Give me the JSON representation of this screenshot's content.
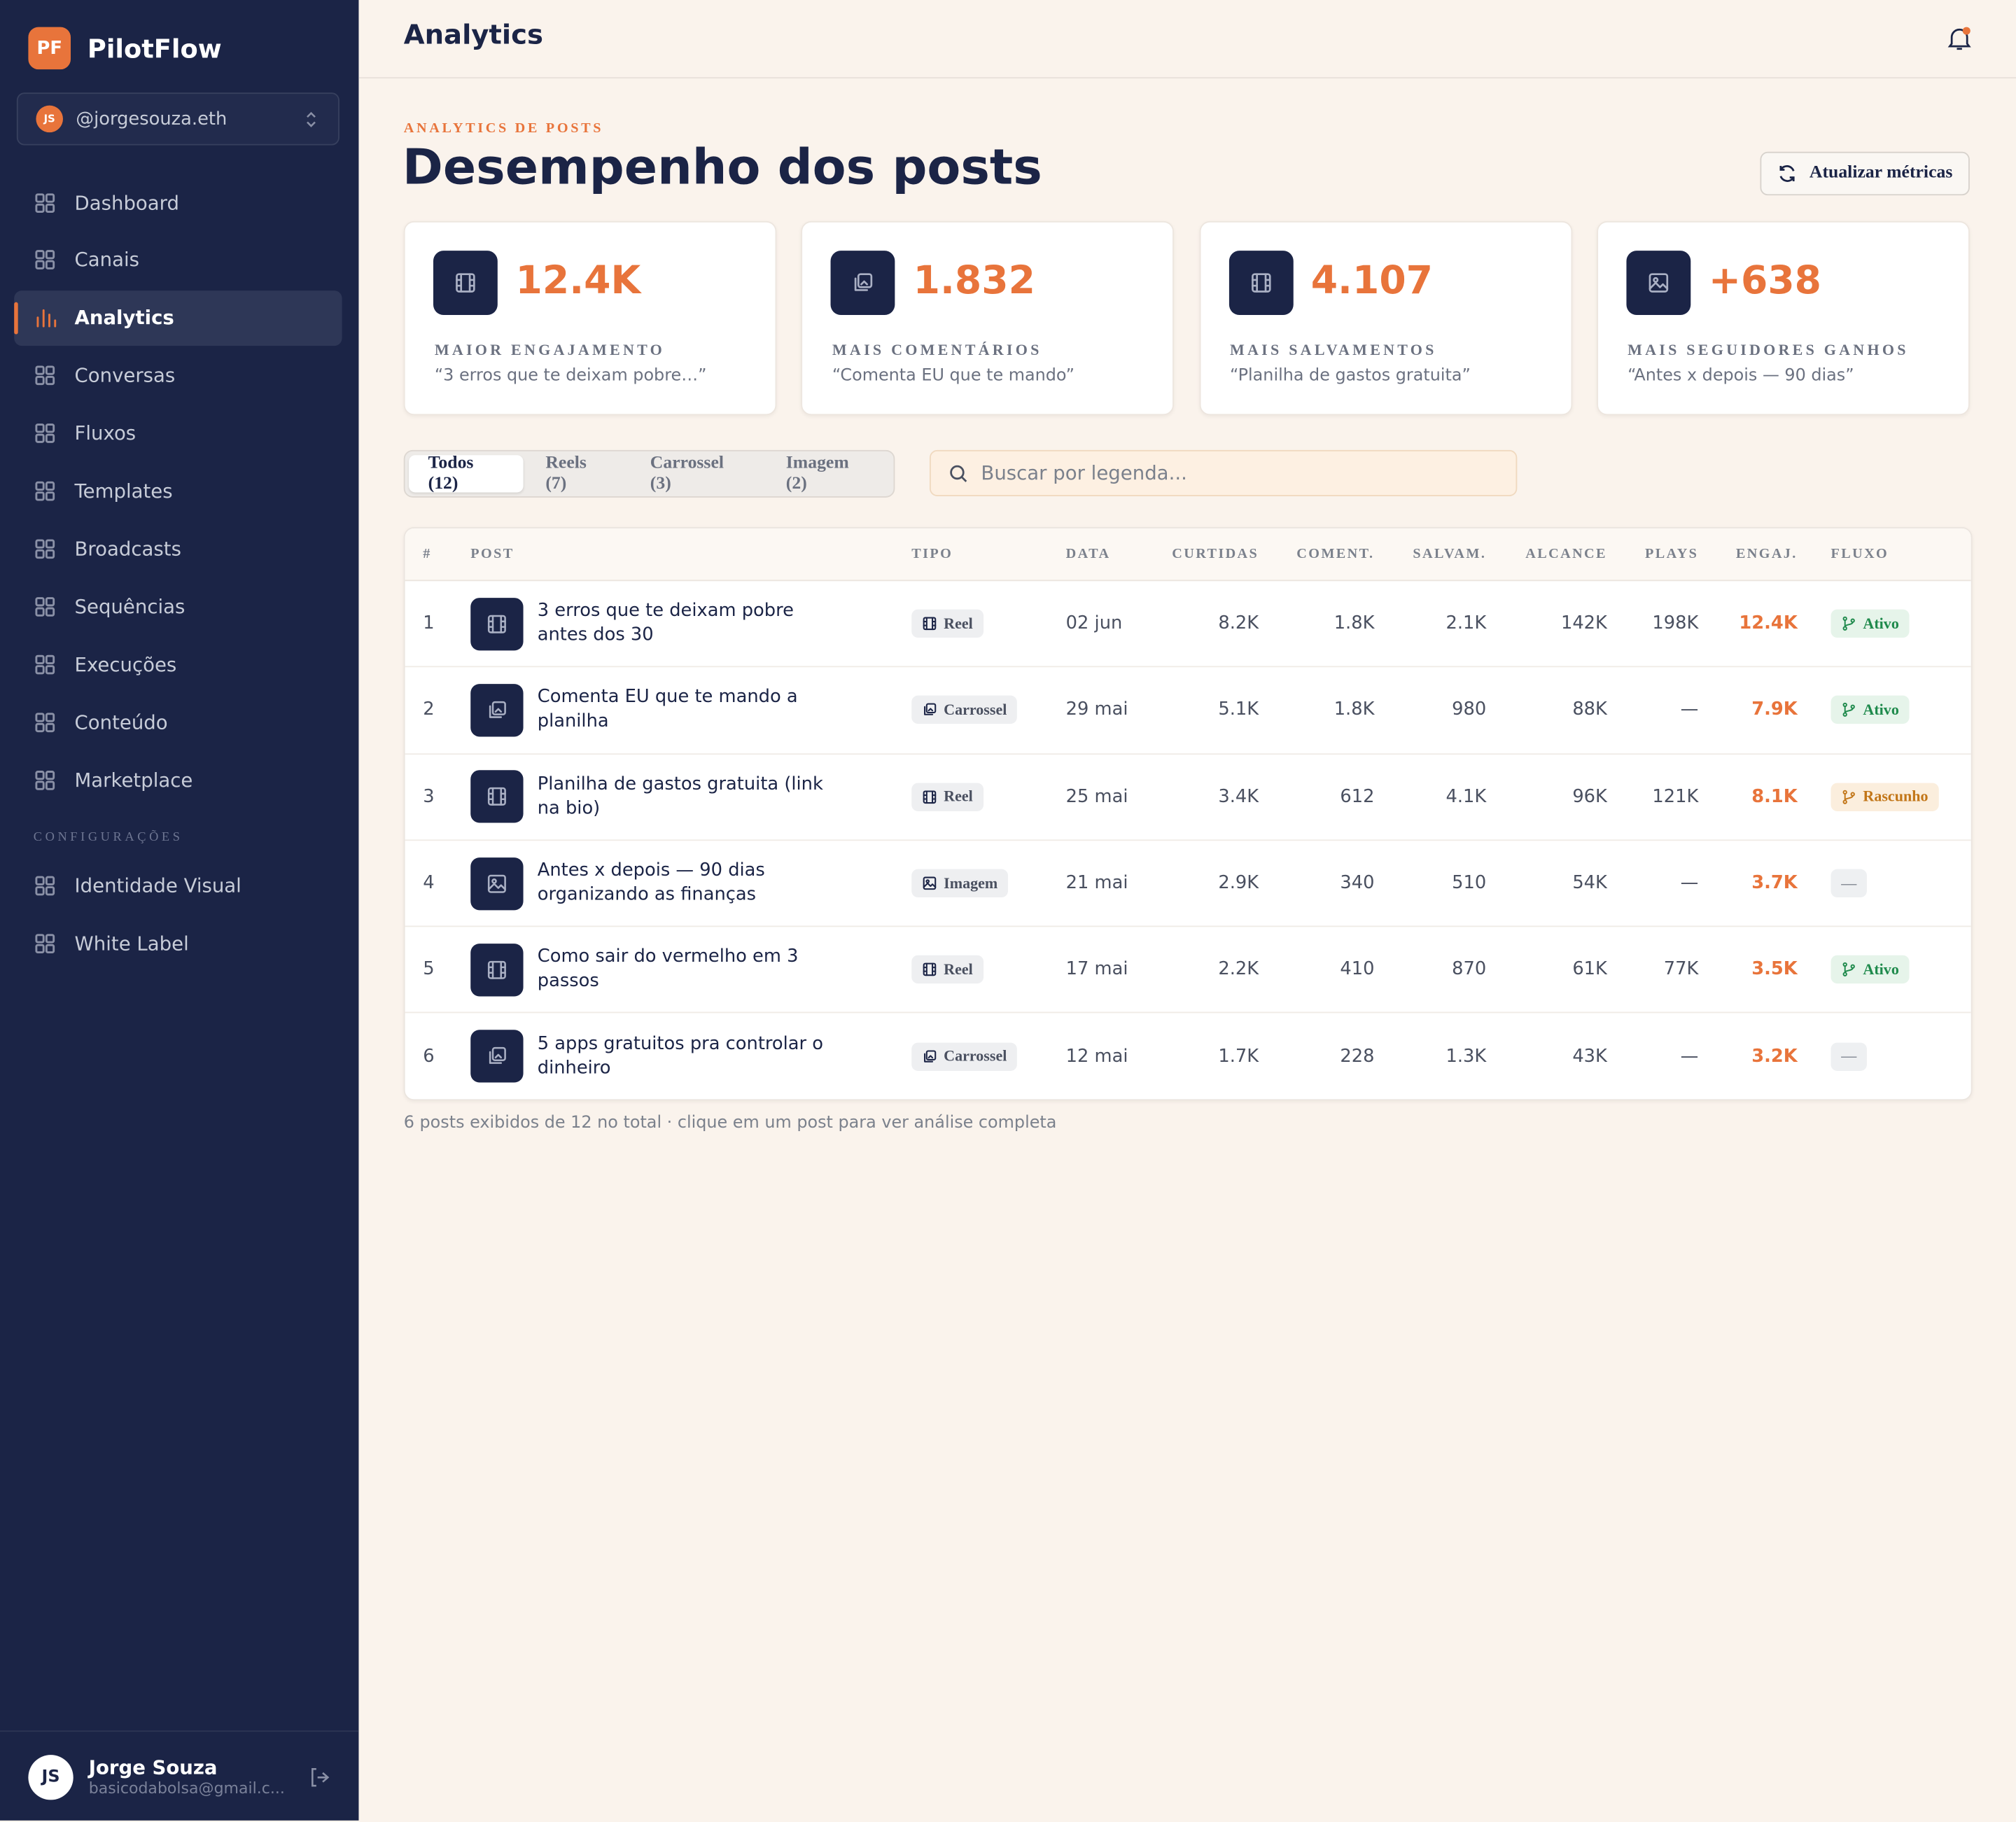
{
  "sidebar": {
    "brand": {
      "logo": "PF",
      "name": "PilotFlow"
    },
    "account": {
      "avatar": "JS",
      "handle": "@jorgesouza.eth"
    },
    "nav": [
      {
        "label": "Dashboard"
      },
      {
        "label": "Canais"
      },
      {
        "label": "Analytics",
        "active": true
      },
      {
        "label": "Conversas"
      },
      {
        "label": "Fluxos"
      },
      {
        "label": "Templates"
      },
      {
        "label": "Broadcasts"
      },
      {
        "label": "Sequências"
      },
      {
        "label": "Execuções"
      },
      {
        "label": "Conteúdo"
      },
      {
        "label": "Marketplace"
      }
    ],
    "settings_heading": "CONFIGURAÇÕES",
    "settings": [
      {
        "label": "Identidade Visual"
      },
      {
        "label": "White Label"
      }
    ],
    "user": {
      "avatar": "JS",
      "name": "Jorge Souza",
      "email": "basicodabolsa@gmail.c..."
    }
  },
  "header": {
    "title": "Analytics"
  },
  "page": {
    "eyebrow": "ANALYTICS DE POSTS",
    "title": "Desempenho dos posts",
    "refresh_button": "Atualizar métricas"
  },
  "cards": [
    {
      "icon": "reel",
      "value": "12.4K",
      "label": "MAIOR ENGAJAMENTO",
      "subtitle": "“3 erros que te deixam pobre…”"
    },
    {
      "icon": "carousel",
      "value": "1.832",
      "label": "MAIS COMENTÁRIOS",
      "subtitle": "“Comenta EU que te mando”"
    },
    {
      "icon": "reel",
      "value": "4.107",
      "label": "MAIS SALVAMENTOS",
      "subtitle": "“Planilha de gastos gratuita”"
    },
    {
      "icon": "image",
      "value": "+638",
      "label": "MAIS SEGUIDORES GANHOS",
      "subtitle": "“Antes x depois — 90 dias”"
    }
  ],
  "tabs": [
    {
      "label": "Todos (12)",
      "active": true
    },
    {
      "label": "Reels (7)"
    },
    {
      "label": "Carrossel (3)"
    },
    {
      "label": "Imagem (2)"
    }
  ],
  "search": {
    "placeholder": "Buscar por legenda..."
  },
  "table": {
    "headers": [
      "#",
      "POST",
      "TIPO",
      "DATA",
      "CURTIDAS",
      "COMENT.",
      "SALVAM.",
      "ALCANCE",
      "PLAYS",
      "ENGAJ.",
      "FLUXO"
    ],
    "rows": [
      {
        "num": "1",
        "title": "3 erros que te deixam pobre antes dos 30",
        "type": {
          "label": "Reel",
          "icon": "reel"
        },
        "date": "02 jun",
        "likes": "8.2K",
        "comments": "1.8K",
        "saves": "2.1K",
        "reach": "142K",
        "plays": "198K",
        "engagement": "12.4K",
        "flow": {
          "label": "Ativo",
          "color": "#1f8a4c",
          "bg": "#e6f4ea",
          "icon": true
        }
      },
      {
        "num": "2",
        "title": "Comenta EU que te mando a planilha",
        "type": {
          "label": "Carrossel",
          "icon": "carousel"
        },
        "date": "29 mai",
        "likes": "5.1K",
        "comments": "1.8K",
        "saves": "980",
        "reach": "88K",
        "plays": "—",
        "engagement": "7.9K",
        "flow": {
          "label": "Ativo",
          "color": "#1f8a4c",
          "bg": "#e6f4ea",
          "icon": true
        }
      },
      {
        "num": "3",
        "title": "Planilha de gastos gratuita (link na bio)",
        "type": {
          "label": "Reel",
          "icon": "reel"
        },
        "date": "25 mai",
        "likes": "3.4K",
        "comments": "612",
        "saves": "4.1K",
        "reach": "96K",
        "plays": "121K",
        "engagement": "8.1K",
        "flow": {
          "label": "Rascunho",
          "color": "#c27618",
          "bg": "#fbeedd",
          "icon": true
        }
      },
      {
        "num": "4",
        "title": "Antes x depois — 90 dias organizando as finanças",
        "type": {
          "label": "Imagem",
          "icon": "image"
        },
        "date": "21 mai",
        "likes": "2.9K",
        "comments": "340",
        "saves": "510",
        "reach": "54K",
        "plays": "—",
        "engagement": "3.7K",
        "flow": {
          "label": "—",
          "color": "#8a8f99",
          "bg": "#eef0f2",
          "icon": false
        }
      },
      {
        "num": "5",
        "title": "Como sair do vermelho em 3 passos",
        "type": {
          "label": "Reel",
          "icon": "reel"
        },
        "date": "17 mai",
        "likes": "2.2K",
        "comments": "410",
        "saves": "870",
        "reach": "61K",
        "plays": "77K",
        "engagement": "3.5K",
        "flow": {
          "label": "Ativo",
          "color": "#1f8a4c",
          "bg": "#e6f4ea",
          "icon": true
        }
      },
      {
        "num": "6",
        "title": "5 apps gratuitos pra controlar o dinheiro",
        "type": {
          "label": "Carrossel",
          "icon": "carousel"
        },
        "date": "12 mai",
        "likes": "1.7K",
        "comments": "228",
        "saves": "1.3K",
        "reach": "43K",
        "plays": "—",
        "engagement": "3.2K",
        "flow": {
          "label": "—",
          "color": "#8a8f99",
          "bg": "#eef0f2",
          "icon": false
        }
      }
    ]
  },
  "footer_note": "6 posts exibidos de 12 no total · clique em um post para ver análise completa"
}
